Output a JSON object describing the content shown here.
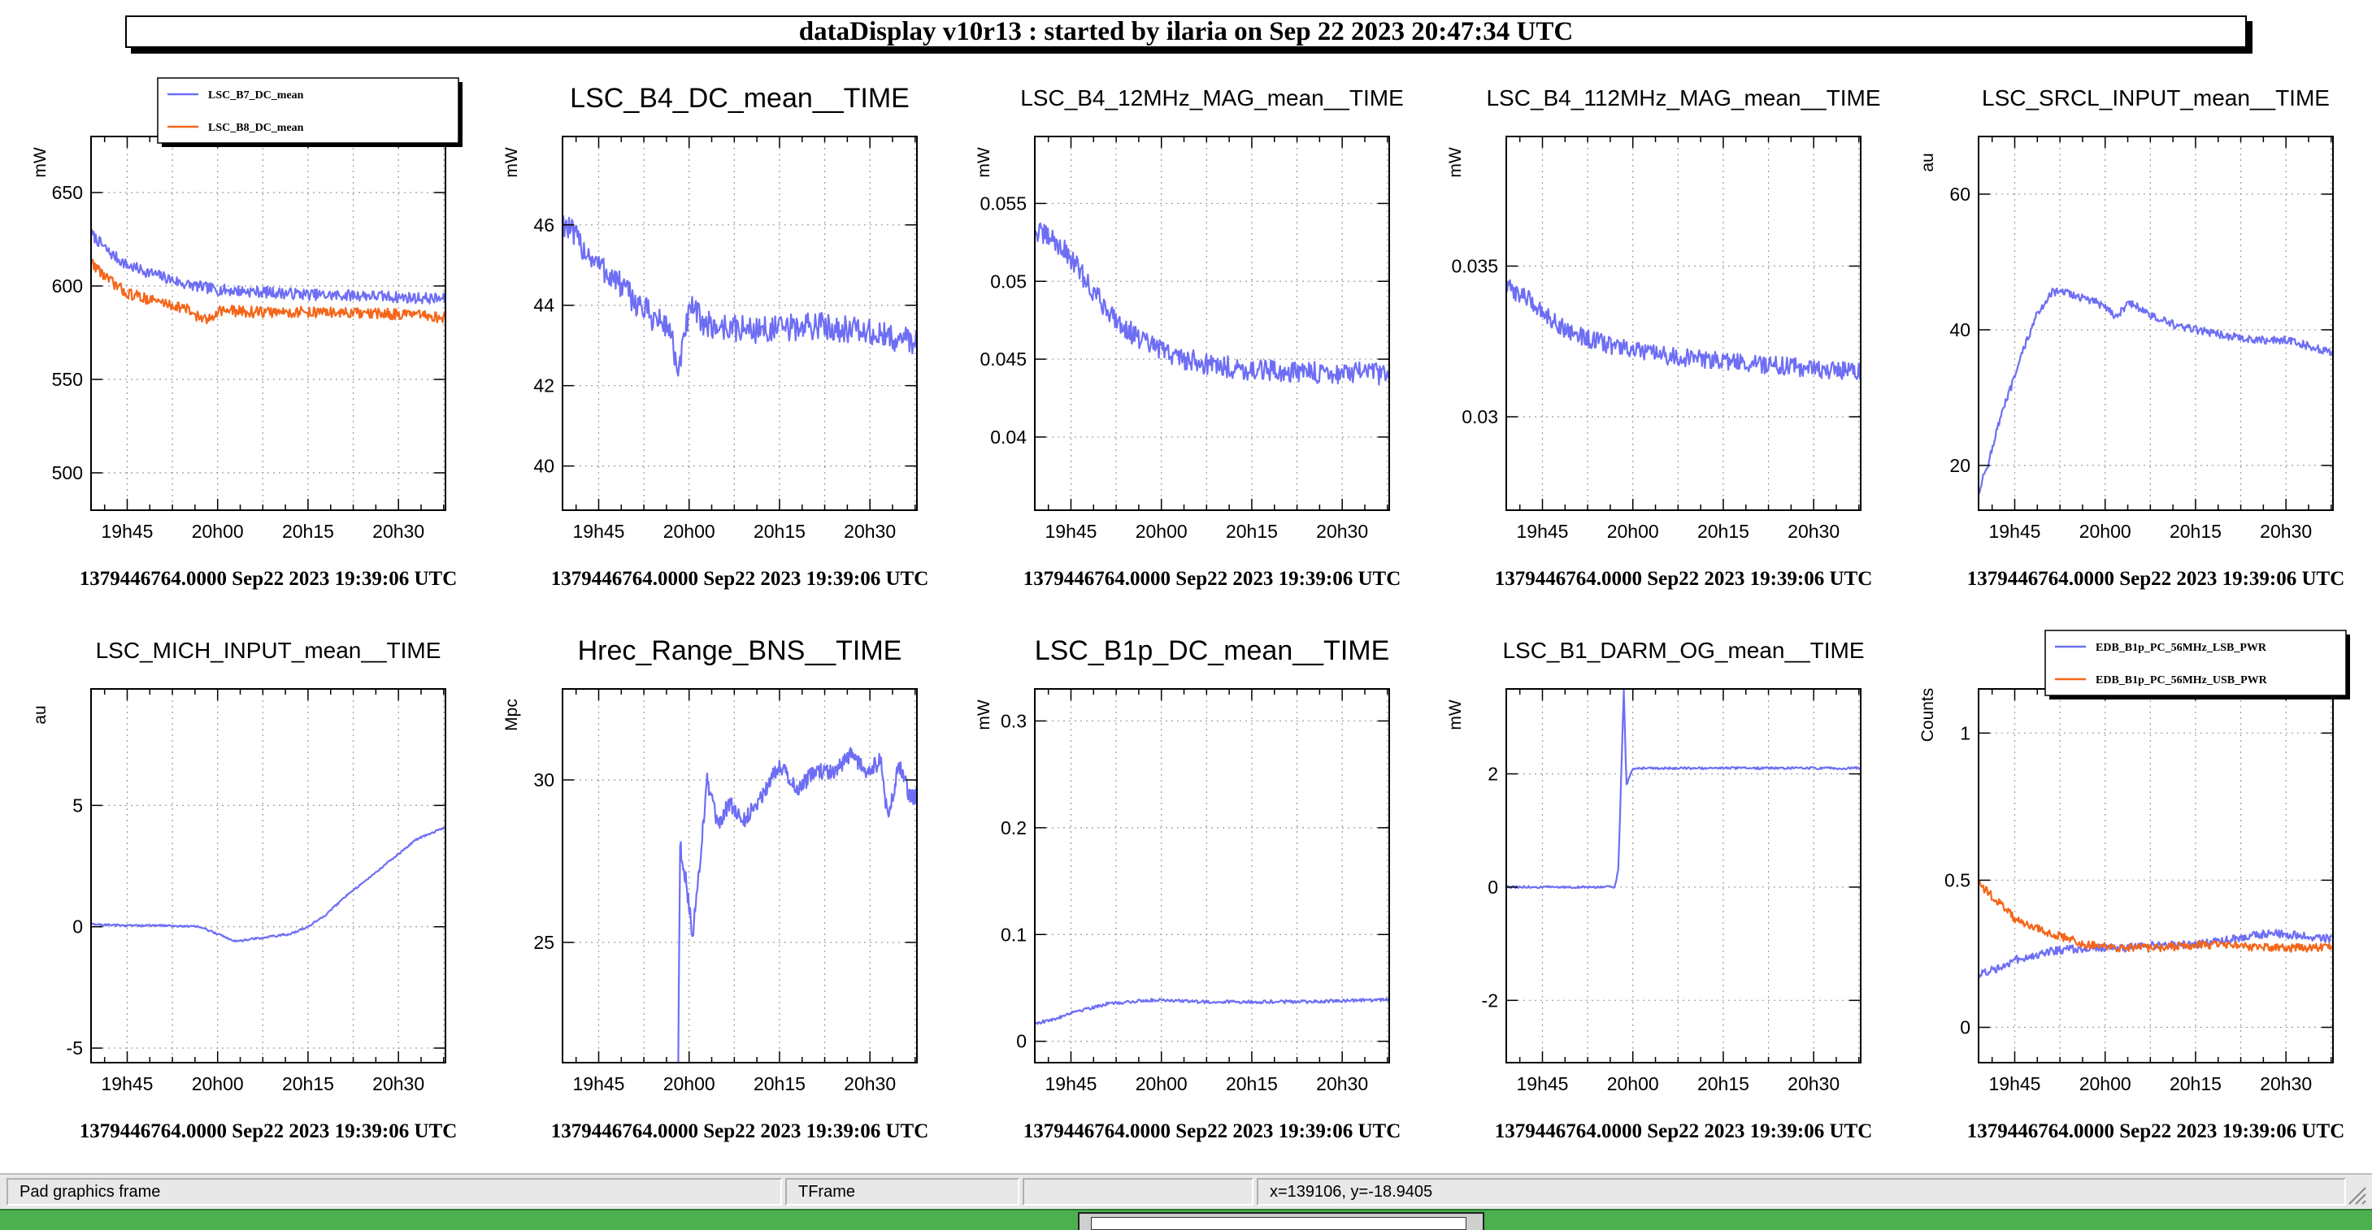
{
  "window": {
    "title": "dataDisplay v10r13 : started by ilaria on Sep 22 2023 20:47:34 UTC"
  },
  "status_bar": {
    "pad": "Pad graphics frame",
    "frame": "TFrame",
    "empty": "",
    "coords": "x=139106, y=-18.9405"
  },
  "colors": {
    "series_blue": "#6e6ef5",
    "series_orange": "#f5661a",
    "grid": "#9a9a9a",
    "frame": "#000000"
  },
  "chart_data": [
    {
      "type": "line",
      "title": "",
      "ylabel": "mW",
      "xlabel": "1379446764.0000 Sep22 2023 19:39:06 UTC",
      "x_ticks": [
        "19h45",
        "20h00",
        "20h15",
        "20h30"
      ],
      "y_ticks": [
        "500",
        "550",
        "600",
        "650"
      ],
      "xlim": [
        -0.1,
        0.88
      ],
      "ylim": [
        480,
        680
      ],
      "grid": true,
      "legend_position": "top-right",
      "series": [
        {
          "name": "LSC_B7_DC_mean",
          "color": "#6e6ef5",
          "noise": 3,
          "points": [
            [
              -0.1,
              628
            ],
            [
              -0.05,
              618
            ],
            [
              0,
              611
            ],
            [
              0.08,
              606
            ],
            [
              0.16,
              601
            ],
            [
              0.25,
              598
            ],
            [
              0.35,
              597
            ],
            [
              0.45,
              596
            ],
            [
              0.55,
              595
            ],
            [
              0.65,
              595
            ],
            [
              0.75,
              594
            ],
            [
              0.88,
              593
            ]
          ]
        },
        {
          "name": "LSC_B8_DC_mean",
          "color": "#f5661a",
          "noise": 3,
          "points": [
            [
              -0.1,
              613
            ],
            [
              -0.05,
              603
            ],
            [
              0,
              596
            ],
            [
              0.08,
              592
            ],
            [
              0.16,
              588
            ],
            [
              0.22,
              581
            ],
            [
              0.25,
              587
            ],
            [
              0.35,
              586
            ],
            [
              0.45,
              586
            ],
            [
              0.55,
              586
            ],
            [
              0.65,
              585
            ],
            [
              0.75,
              585
            ],
            [
              0.88,
              583
            ]
          ]
        }
      ]
    },
    {
      "type": "line",
      "title": "LSC_B4_DC_mean__TIME",
      "ylabel": "mW",
      "xlabel": "1379446764.0000 Sep22 2023 19:39:06 UTC",
      "x_ticks": [
        "19h45",
        "20h00",
        "20h15",
        "20h30"
      ],
      "y_ticks": [
        "40",
        "42",
        "44",
        "46"
      ],
      "xlim": [
        -0.1,
        0.88
      ],
      "ylim": [
        38.9,
        48.2
      ],
      "grid": true,
      "legend_position": "none",
      "series": [
        {
          "name": "",
          "color": "#6e6ef5",
          "noise": 0.35,
          "points": [
            [
              -0.1,
              46.1
            ],
            [
              -0.05,
              45.5
            ],
            [
              0,
              45
            ],
            [
              0.05,
              44.6
            ],
            [
              0.1,
              44.1
            ],
            [
              0.15,
              43.7
            ],
            [
              0.2,
              43.4
            ],
            [
              0.22,
              42.1
            ],
            [
              0.24,
              43.5
            ],
            [
              0.26,
              43.9
            ],
            [
              0.3,
              43.5
            ],
            [
              0.4,
              43.4
            ],
            [
              0.5,
              43.4
            ],
            [
              0.6,
              43.5
            ],
            [
              0.7,
              43.4
            ],
            [
              0.8,
              43.2
            ],
            [
              0.88,
              43.1
            ]
          ]
        }
      ]
    },
    {
      "type": "line",
      "title": "LSC_B4_12MHz_MAG_mean__TIME",
      "ylabel": "mW",
      "xlabel": "1379446764.0000 Sep22 2023 19:39:06 UTC",
      "x_ticks": [
        "19h45",
        "20h00",
        "20h15",
        "20h30"
      ],
      "y_ticks": [
        "0.04",
        "0.045",
        "0.05",
        "0.055"
      ],
      "xlim": [
        -0.1,
        0.88
      ],
      "ylim": [
        0.0353,
        0.0593
      ],
      "grid": true,
      "legend_position": "none",
      "series": [
        {
          "name": "",
          "color": "#6e6ef5",
          "noise": 0.0007,
          "points": [
            [
              -0.1,
              0.0532
            ],
            [
              -0.05,
              0.0527
            ],
            [
              0,
              0.0515
            ],
            [
              0.05,
              0.0497
            ],
            [
              0.1,
              0.0482
            ],
            [
              0.15,
              0.047
            ],
            [
              0.2,
              0.0461
            ],
            [
              0.3,
              0.0451
            ],
            [
              0.4,
              0.0446
            ],
            [
              0.5,
              0.0443
            ],
            [
              0.6,
              0.0442
            ],
            [
              0.7,
              0.0441
            ],
            [
              0.8,
              0.0441
            ],
            [
              0.88,
              0.044
            ]
          ]
        }
      ]
    },
    {
      "type": "line",
      "title": "LSC_B4_112MHz_MAG_mean__TIME",
      "ylabel": "mW",
      "xlabel": "1379446764.0000 Sep22 2023 19:39:06 UTC",
      "x_ticks": [
        "19h45",
        "20h00",
        "20h15",
        "20h30"
      ],
      "y_ticks": [
        "0.03",
        "0.035"
      ],
      "xlim": [
        -0.1,
        0.88
      ],
      "ylim": [
        0.0269,
        0.0393
      ],
      "grid": true,
      "legend_position": "none",
      "series": [
        {
          "name": "",
          "color": "#6e6ef5",
          "noise": 0.0003,
          "points": [
            [
              -0.1,
              0.0343
            ],
            [
              -0.05,
              0.034
            ],
            [
              0,
              0.0335
            ],
            [
              0.05,
              0.033
            ],
            [
              0.1,
              0.0327
            ],
            [
              0.15,
              0.0325
            ],
            [
              0.25,
              0.0322
            ],
            [
              0.35,
              0.032
            ],
            [
              0.45,
              0.0319
            ],
            [
              0.55,
              0.0318
            ],
            [
              0.65,
              0.0317
            ],
            [
              0.75,
              0.0316
            ],
            [
              0.88,
              0.0315
            ]
          ]
        }
      ]
    },
    {
      "type": "line",
      "title": "LSC_SRCL_INPUT_mean__TIME",
      "ylabel": "au",
      "xlabel": "1379446764.0000 Sep22 2023 19:39:06 UTC",
      "x_ticks": [
        "19h45",
        "20h00",
        "20h15",
        "20h30"
      ],
      "y_ticks": [
        "20",
        "40",
        "60"
      ],
      "xlim": [
        -0.1,
        0.88
      ],
      "ylim": [
        13.4,
        68.5
      ],
      "grid": true,
      "legend_position": "none",
      "series": [
        {
          "name": "",
          "color": "#6e6ef5",
          "noise": 0.6,
          "points": [
            [
              -0.1,
              16
            ],
            [
              -0.07,
              21
            ],
            [
              -0.04,
              27
            ],
            [
              0,
              33
            ],
            [
              0.03,
              38
            ],
            [
              0.06,
              42
            ],
            [
              0.1,
              45.5
            ],
            [
              0.14,
              45.5
            ],
            [
              0.2,
              44.5
            ],
            [
              0.25,
              43.5
            ],
            [
              0.28,
              42
            ],
            [
              0.32,
              44
            ],
            [
              0.38,
              42
            ],
            [
              0.45,
              40.5
            ],
            [
              0.55,
              39.5
            ],
            [
              0.65,
              38.5
            ],
            [
              0.75,
              38.5
            ],
            [
              0.82,
              37.5
            ],
            [
              0.88,
              36.5
            ]
          ]
        }
      ]
    },
    {
      "type": "line",
      "title": "LSC_MICH_INPUT_mean__TIME",
      "ylabel": "au",
      "xlabel": "1379446764.0000 Sep22 2023 19:39:06 UTC",
      "x_ticks": [
        "19h45",
        "20h00",
        "20h15",
        "20h30"
      ],
      "y_ticks": [
        "-5",
        "0",
        "5"
      ],
      "xlim": [
        -0.1,
        0.88
      ],
      "ylim": [
        -5.6,
        9.8
      ],
      "grid": true,
      "legend_position": "none",
      "series": [
        {
          "name": "",
          "color": "#6e6ef5",
          "noise": 0.04,
          "points": [
            [
              -0.1,
              0.1
            ],
            [
              0,
              0.05
            ],
            [
              0.1,
              0.05
            ],
            [
              0.2,
              0
            ],
            [
              0.25,
              -0.3
            ],
            [
              0.3,
              -0.6
            ],
            [
              0.35,
              -0.5
            ],
            [
              0.45,
              -0.3
            ],
            [
              0.5,
              0
            ],
            [
              0.55,
              0.5
            ],
            [
              0.6,
              1.2
            ],
            [
              0.7,
              2.4
            ],
            [
              0.8,
              3.6
            ],
            [
              0.88,
              4.1
            ]
          ]
        }
      ]
    },
    {
      "type": "line",
      "title": "Hrec_Range_BNS__TIME",
      "ylabel": "Mpc",
      "xlabel": "1379446764.0000 Sep22 2023 19:39:06 UTC",
      "x_ticks": [
        "19h45",
        "20h00",
        "20h15",
        "20h30"
      ],
      "y_ticks": [
        "25",
        "30"
      ],
      "xlim": [
        -0.1,
        0.88
      ],
      "ylim": [
        21.3,
        32.8
      ],
      "grid": true,
      "legend_position": "none",
      "series": [
        {
          "name": "",
          "color": "#6e6ef5",
          "noise": 0.25,
          "points": [
            [
              0.22,
              21.3
            ],
            [
              0.225,
              28
            ],
            [
              0.24,
              27
            ],
            [
              0.26,
              25.2
            ],
            [
              0.28,
              27.5
            ],
            [
              0.3,
              30
            ],
            [
              0.33,
              28.5
            ],
            [
              0.36,
              29.3
            ],
            [
              0.4,
              28.7
            ],
            [
              0.45,
              29.5
            ],
            [
              0.5,
              30.5
            ],
            [
              0.55,
              29.7
            ],
            [
              0.6,
              30.3
            ],
            [
              0.65,
              30.2
            ],
            [
              0.7,
              30.8
            ],
            [
              0.74,
              30.2
            ],
            [
              0.78,
              30.6
            ],
            [
              0.8,
              28.7
            ],
            [
              0.83,
              30.5
            ],
            [
              0.86,
              29.5
            ],
            [
              0.88,
              29.5
            ]
          ]
        }
      ]
    },
    {
      "type": "line",
      "title": "LSC_B1p_DC_mean__TIME",
      "ylabel": "mW",
      "xlabel": "1379446764.0000 Sep22 2023 19:39:06 UTC",
      "x_ticks": [
        "19h45",
        "20h00",
        "20h15",
        "20h30"
      ],
      "y_ticks": [
        "0",
        "0.1",
        "0.2",
        "0.3"
      ],
      "xlim": [
        -0.1,
        0.88
      ],
      "ylim": [
        -0.02,
        0.33
      ],
      "grid": true,
      "legend_position": "none",
      "series": [
        {
          "name": "",
          "color": "#6e6ef5",
          "noise": 0.0015,
          "points": [
            [
              -0.1,
              0.017
            ],
            [
              -0.05,
              0.02
            ],
            [
              0,
              0.027
            ],
            [
              0.05,
              0.031
            ],
            [
              0.1,
              0.035
            ],
            [
              0.2,
              0.038
            ],
            [
              0.25,
              0.039
            ],
            [
              0.35,
              0.037
            ],
            [
              0.45,
              0.037
            ],
            [
              0.55,
              0.037
            ],
            [
              0.65,
              0.037
            ],
            [
              0.75,
              0.038
            ],
            [
              0.88,
              0.039
            ]
          ]
        }
      ]
    },
    {
      "type": "line",
      "title": "LSC_B1_DARM_OG_mean__TIME",
      "ylabel": "mW",
      "xlabel": "1379446764.0000 Sep22 2023 19:39:06 UTC",
      "x_ticks": [
        "19h45",
        "20h00",
        "20h15",
        "20h30"
      ],
      "y_ticks": [
        "-2",
        "0",
        "2"
      ],
      "xlim": [
        -0.1,
        0.88
      ],
      "ylim": [
        -3.1,
        3.5
      ],
      "grid": true,
      "legend_position": "none",
      "series": [
        {
          "name": "",
          "color": "#6e6ef5",
          "noise": 0.02,
          "points": [
            [
              -0.1,
              0
            ],
            [
              0.2,
              0
            ],
            [
              0.21,
              0.3
            ],
            [
              0.225,
              3.5
            ],
            [
              0.232,
              1.8
            ],
            [
              0.25,
              2.1
            ],
            [
              0.4,
              2.1
            ],
            [
              0.6,
              2.1
            ],
            [
              0.88,
              2.1
            ]
          ]
        }
      ]
    },
    {
      "type": "line",
      "title": "",
      "ylabel": "Counts",
      "xlabel": "1379446764.0000 Sep22 2023 19:39:06 UTC",
      "x_ticks": [
        "19h45",
        "20h00",
        "20h15",
        "20h30"
      ],
      "y_ticks": [
        "0",
        "0.5",
        "1"
      ],
      "xlim": [
        -0.1,
        0.88
      ],
      "ylim": [
        -0.12,
        1.15
      ],
      "grid": true,
      "legend_position": "top-right",
      "series": [
        {
          "name": "EDB_B1p_PC_56MHz_LSB_PWR",
          "color": "#6e6ef5",
          "noise": 0.014,
          "points": [
            [
              -0.1,
              0.18
            ],
            [
              -0.05,
              0.2
            ],
            [
              0,
              0.23
            ],
            [
              0.05,
              0.24
            ],
            [
              0.1,
              0.26
            ],
            [
              0.2,
              0.27
            ],
            [
              0.3,
              0.27
            ],
            [
              0.4,
              0.28
            ],
            [
              0.5,
              0.28
            ],
            [
              0.6,
              0.3
            ],
            [
              0.7,
              0.32
            ],
            [
              0.8,
              0.31
            ],
            [
              0.88,
              0.3
            ]
          ]
        },
        {
          "name": "EDB_B1p_PC_56MHz_USB_PWR",
          "color": "#f5661a",
          "noise": 0.014,
          "points": [
            [
              -0.1,
              0.49
            ],
            [
              -0.05,
              0.43
            ],
            [
              0,
              0.37
            ],
            [
              0.05,
              0.34
            ],
            [
              0.1,
              0.32
            ],
            [
              0.2,
              0.28
            ],
            [
              0.3,
              0.27
            ],
            [
              0.4,
              0.27
            ],
            [
              0.5,
              0.28
            ],
            [
              0.6,
              0.28
            ],
            [
              0.7,
              0.27
            ],
            [
              0.8,
              0.27
            ],
            [
              0.88,
              0.27
            ]
          ]
        }
      ]
    }
  ]
}
